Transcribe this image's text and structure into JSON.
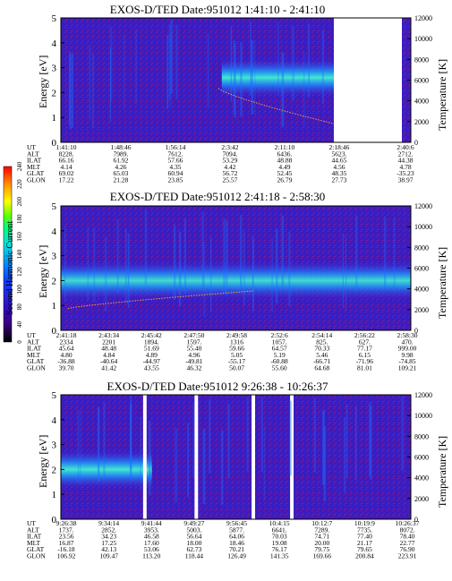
{
  "chart_data": [
    {
      "type": "heatmap",
      "title": "EXOS-D/TED   Date:951012   1:41:10 - 2:41:10",
      "ylabel": "Energy [eV]",
      "right_label": "Temperature [K]",
      "ylim": [
        0,
        5
      ],
      "yticks": [
        "0",
        "1",
        "2",
        "3",
        "4",
        "5"
      ],
      "temp_ticks": [
        "0",
        "2000",
        "4000",
        "6000",
        "8000",
        "10000",
        "12000"
      ],
      "temp_lim": [
        0,
        12000
      ],
      "data_end_fraction": 0.78,
      "band": {
        "start": 0.46,
        "end": 0.78,
        "center_ev": 2.6,
        "peak": 0.9
      },
      "temperature_trace_k": {
        "start": 0.45,
        "end": 0.78,
        "from": 5200,
        "to": 1800
      },
      "table": {
        "row_labels": [
          "UT",
          "ALT",
          "ILAT",
          "MLT",
          "GLAT",
          "GLON"
        ],
        "columns": [
          [
            "1:41:10",
            "8228.",
            "66.16",
            "4.14",
            "69.02",
            "17.22"
          ],
          [
            "1:48:46",
            "7989.",
            "61.92",
            "4.26",
            "65.03",
            "21.28"
          ],
          [
            "1:56:14",
            "7612.",
            "57.66",
            "4.35",
            "60.94",
            "23.85"
          ],
          [
            "2:3:42",
            "7094.",
            "53.29",
            "4.42",
            "56.72",
            "25.57"
          ],
          [
            "2:11:10",
            "6436.",
            "48.88",
            "4.49",
            "52.45",
            "26.79"
          ],
          [
            "2:18:46",
            "5623.",
            "44.65",
            "4.56",
            "48.35",
            "27.73"
          ],
          [
            "2:40:6",
            "2712.",
            "44.38",
            "4.78",
            "-35.23",
            "38.97"
          ]
        ]
      }
    },
    {
      "type": "heatmap",
      "title": "EXOS-D/TED   Date:951012   2:41:18 - 2:58:30",
      "ylabel": "Energy [eV]",
      "right_label": "Temperature [K]",
      "ylim": [
        0,
        5
      ],
      "yticks": [
        "0",
        "1",
        "2",
        "3",
        "4",
        "5"
      ],
      "temp_ticks": [
        "0",
        "2000",
        "4000",
        "6000",
        "8000",
        "10000",
        "12000"
      ],
      "temp_lim": [
        0,
        12000
      ],
      "band": {
        "start": 0.0,
        "end": 1.0,
        "center_ev": 2.0,
        "peak": 0.85
      },
      "temperature_trace_k": {
        "start": 0.02,
        "end": 0.55,
        "from": 2100,
        "to": 3800
      },
      "table": {
        "row_labels": [
          "UT",
          "ALT",
          "ILAT",
          "MLT",
          "GLAT",
          "GLON"
        ],
        "columns": [
          [
            "2:41:18",
            "2334",
            "45.64",
            "4.80",
            "-36.88",
            "39.70"
          ],
          [
            "2:43:34",
            "2201",
            "48.48",
            "4.84",
            "-40.64",
            "41.42"
          ],
          [
            "2:45:42",
            "1894.",
            "51.69",
            "4.89",
            "-44.97",
            "43.55"
          ],
          [
            "2:47:50",
            "1597.",
            "55.40",
            "4.96",
            "-49.81",
            "46.32"
          ],
          [
            "2:49:58",
            "1316",
            "59.66",
            "5.05",
            "-55.17",
            "50.07"
          ],
          [
            "2:52:6",
            "1057.",
            "64.57",
            "5.19",
            "-60.88",
            "55.60"
          ],
          [
            "2:54:14",
            "825.",
            "70.33",
            "5.46",
            "-66.71",
            "64.68"
          ],
          [
            "2:56:22",
            "627.",
            "77.17",
            "6.15",
            "-71.96",
            "81.01"
          ],
          [
            "2:58:30",
            "470.",
            "999.00",
            "9.98",
            "-74.85",
            "109.21"
          ]
        ]
      }
    },
    {
      "type": "heatmap",
      "title": "EXOS-D/TED   Date:951012   9:26:38 - 10:26:37",
      "ylabel": "Energy [eV]",
      "right_label": "Temperature [K]",
      "ylim": [
        0,
        5
      ],
      "yticks": [
        "0",
        "1",
        "2",
        "3",
        "4",
        "5"
      ],
      "temp_ticks": [
        "0",
        "2000",
        "4000",
        "6000",
        "8000",
        "10000",
        "12000"
      ],
      "temp_lim": [
        0,
        12000
      ],
      "gaps": [
        [
          0.235,
          0.245
        ],
        [
          0.382,
          0.392
        ],
        [
          0.545,
          0.555
        ],
        [
          0.655,
          0.665
        ]
      ],
      "band": {
        "start": 0.0,
        "end": 0.26,
        "center_ev": 2.0,
        "peak": 0.9
      },
      "table": {
        "row_labels": [
          "UT",
          "ALT",
          "ILAT",
          "MLT",
          "GLAT",
          "GLON"
        ],
        "columns": [
          [
            "9:26:38",
            "1737.",
            "23.56",
            "16.87",
            "-16.18",
            "106.92"
          ],
          [
            "9:34:14",
            "2852.",
            "34.23",
            "17.25",
            "42.13",
            "109.47"
          ],
          [
            "9:41:44",
            "3953.",
            "46.58",
            "17.60",
            "53.06",
            "113.20"
          ],
          [
            "9:49:27",
            "5003.",
            "56.64",
            "18.00",
            "62.73",
            "118.44"
          ],
          [
            "9:56:45",
            "5877.",
            "64.06",
            "18.46",
            "70.21",
            "126.49"
          ],
          [
            "10:4:15",
            "6641.",
            "70.03",
            "19.08",
            "76.17",
            "141.35"
          ],
          [
            "10:12:7",
            "7289.",
            "74.71",
            "20.00",
            "79.75",
            "169.66"
          ],
          [
            "10:19:9",
            "7735.",
            "77.40",
            "21.17",
            "79.65",
            "200.84"
          ],
          [
            "10:26:37",
            "8072.",
            "78.40",
            "22.77",
            "76.90",
            "223.91"
          ]
        ]
      }
    }
  ],
  "colorbar": {
    "label": "Second Harmonic Current",
    "ticks": [
      "0",
      "40",
      "80",
      "100",
      "120",
      "140",
      "160",
      "180",
      "200",
      "220",
      "240"
    ],
    "colors": [
      "#000000",
      "#3a007a",
      "#3010c8",
      "#1040ff",
      "#0090ff",
      "#00e0e0",
      "#00ff80",
      "#60ff00",
      "#ffff00",
      "#ff9000",
      "#ff0000"
    ]
  }
}
